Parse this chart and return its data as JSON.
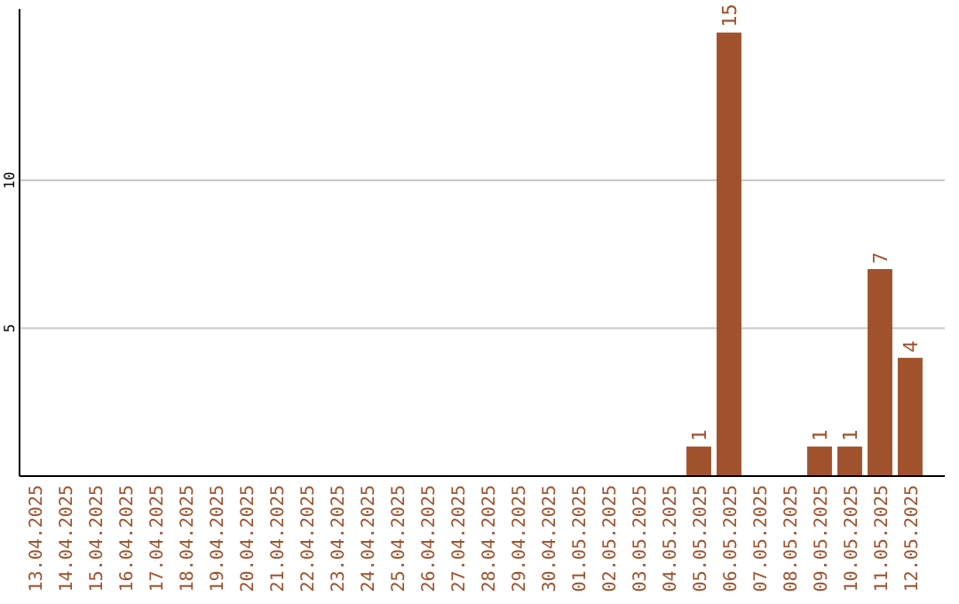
{
  "chart_data": {
    "type": "bar",
    "categories": [
      "13.04.2025",
      "14.04.2025",
      "15.04.2025",
      "16.04.2025",
      "17.04.2025",
      "18.04.2025",
      "19.04.2025",
      "20.04.2025",
      "21.04.2025",
      "22.04.2025",
      "23.04.2025",
      "24.04.2025",
      "25.04.2025",
      "26.04.2025",
      "27.04.2025",
      "28.04.2025",
      "29.04.2025",
      "30.04.2025",
      "01.05.2025",
      "02.05.2025",
      "03.05.2025",
      "04.05.2025",
      "05.05.2025",
      "06.05.2025",
      "07.05.2025",
      "08.05.2025",
      "09.05.2025",
      "10.05.2025",
      "11.05.2025",
      "12.05.2025"
    ],
    "values": [
      0,
      0,
      0,
      0,
      0,
      0,
      0,
      0,
      0,
      0,
      0,
      0,
      0,
      0,
      0,
      0,
      0,
      0,
      0,
      0,
      0,
      0,
      1,
      15,
      0,
      0,
      1,
      1,
      7,
      4
    ],
    "value_labels": [
      null,
      null,
      null,
      null,
      null,
      null,
      null,
      null,
      null,
      null,
      null,
      null,
      null,
      null,
      null,
      null,
      null,
      null,
      null,
      null,
      null,
      null,
      "1",
      "15",
      null,
      null,
      "1",
      "1",
      "7",
      "4"
    ],
    "color": "#a0522d",
    "ylim": [
      0,
      15.8
    ],
    "yticks": [
      5,
      10
    ],
    "grid": "y"
  }
}
